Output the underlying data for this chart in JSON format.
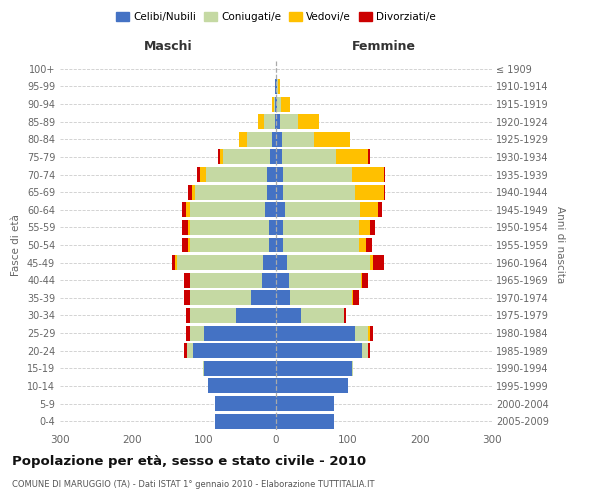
{
  "age_groups": [
    "0-4",
    "5-9",
    "10-14",
    "15-19",
    "20-24",
    "25-29",
    "30-34",
    "35-39",
    "40-44",
    "45-49",
    "50-54",
    "55-59",
    "60-64",
    "65-69",
    "70-74",
    "75-79",
    "80-84",
    "85-89",
    "90-94",
    "95-99",
    "100+"
  ],
  "birth_years": [
    "2005-2009",
    "2000-2004",
    "1995-1999",
    "1990-1994",
    "1985-1989",
    "1980-1984",
    "1975-1979",
    "1970-1974",
    "1965-1969",
    "1960-1964",
    "1955-1959",
    "1950-1954",
    "1945-1949",
    "1940-1944",
    "1935-1939",
    "1930-1934",
    "1925-1929",
    "1920-1924",
    "1915-1919",
    "1910-1914",
    "≤ 1909"
  ],
  "male": {
    "celibe": [
      85,
      85,
      95,
      100,
      115,
      100,
      55,
      35,
      20,
      18,
      10,
      10,
      15,
      12,
      12,
      8,
      5,
      2,
      1,
      1,
      0
    ],
    "coniugato": [
      0,
      0,
      0,
      2,
      8,
      20,
      65,
      85,
      100,
      120,
      110,
      110,
      105,
      100,
      85,
      65,
      35,
      15,
      2,
      0,
      0
    ],
    "vedovo": [
      0,
      0,
      0,
      0,
      0,
      0,
      0,
      0,
      0,
      2,
      2,
      2,
      5,
      5,
      8,
      5,
      12,
      8,
      3,
      0,
      0
    ],
    "divorziato": [
      0,
      0,
      0,
      0,
      5,
      5,
      5,
      8,
      8,
      5,
      8,
      8,
      5,
      5,
      5,
      2,
      0,
      0,
      0,
      0,
      0
    ]
  },
  "female": {
    "nubile": [
      80,
      80,
      100,
      105,
      120,
      110,
      35,
      20,
      18,
      15,
      10,
      10,
      12,
      10,
      10,
      8,
      8,
      5,
      2,
      1,
      0
    ],
    "coniugata": [
      0,
      0,
      0,
      2,
      8,
      18,
      60,
      85,
      100,
      115,
      105,
      105,
      105,
      100,
      95,
      75,
      45,
      25,
      5,
      2,
      0
    ],
    "vedova": [
      0,
      0,
      0,
      0,
      0,
      2,
      0,
      2,
      2,
      5,
      10,
      15,
      25,
      40,
      45,
      45,
      50,
      30,
      12,
      2,
      0
    ],
    "divorziata": [
      0,
      0,
      0,
      0,
      2,
      5,
      2,
      8,
      8,
      15,
      8,
      8,
      5,
      2,
      2,
      2,
      0,
      0,
      0,
      0,
      0
    ]
  },
  "colors": {
    "celibe": "#4472C4",
    "coniugato": "#c5d9a3",
    "vedovo": "#ffc000",
    "divorziato": "#cc0000"
  },
  "title": "Popolazione per età, sesso e stato civile - 2010",
  "subtitle": "COMUNE DI MARUGGIO (TA) - Dati ISTAT 1° gennaio 2010 - Elaborazione TUTTITALIA.IT",
  "xlabel_left": "Maschi",
  "xlabel_right": "Femmine",
  "ylabel_left": "Fasce di età",
  "ylabel_right": "Anni di nascita",
  "xlim": 300,
  "background_color": "#ffffff",
  "grid_color": "#cccccc",
  "xticks": [
    -300,
    -200,
    -100,
    0,
    100,
    200,
    300
  ]
}
